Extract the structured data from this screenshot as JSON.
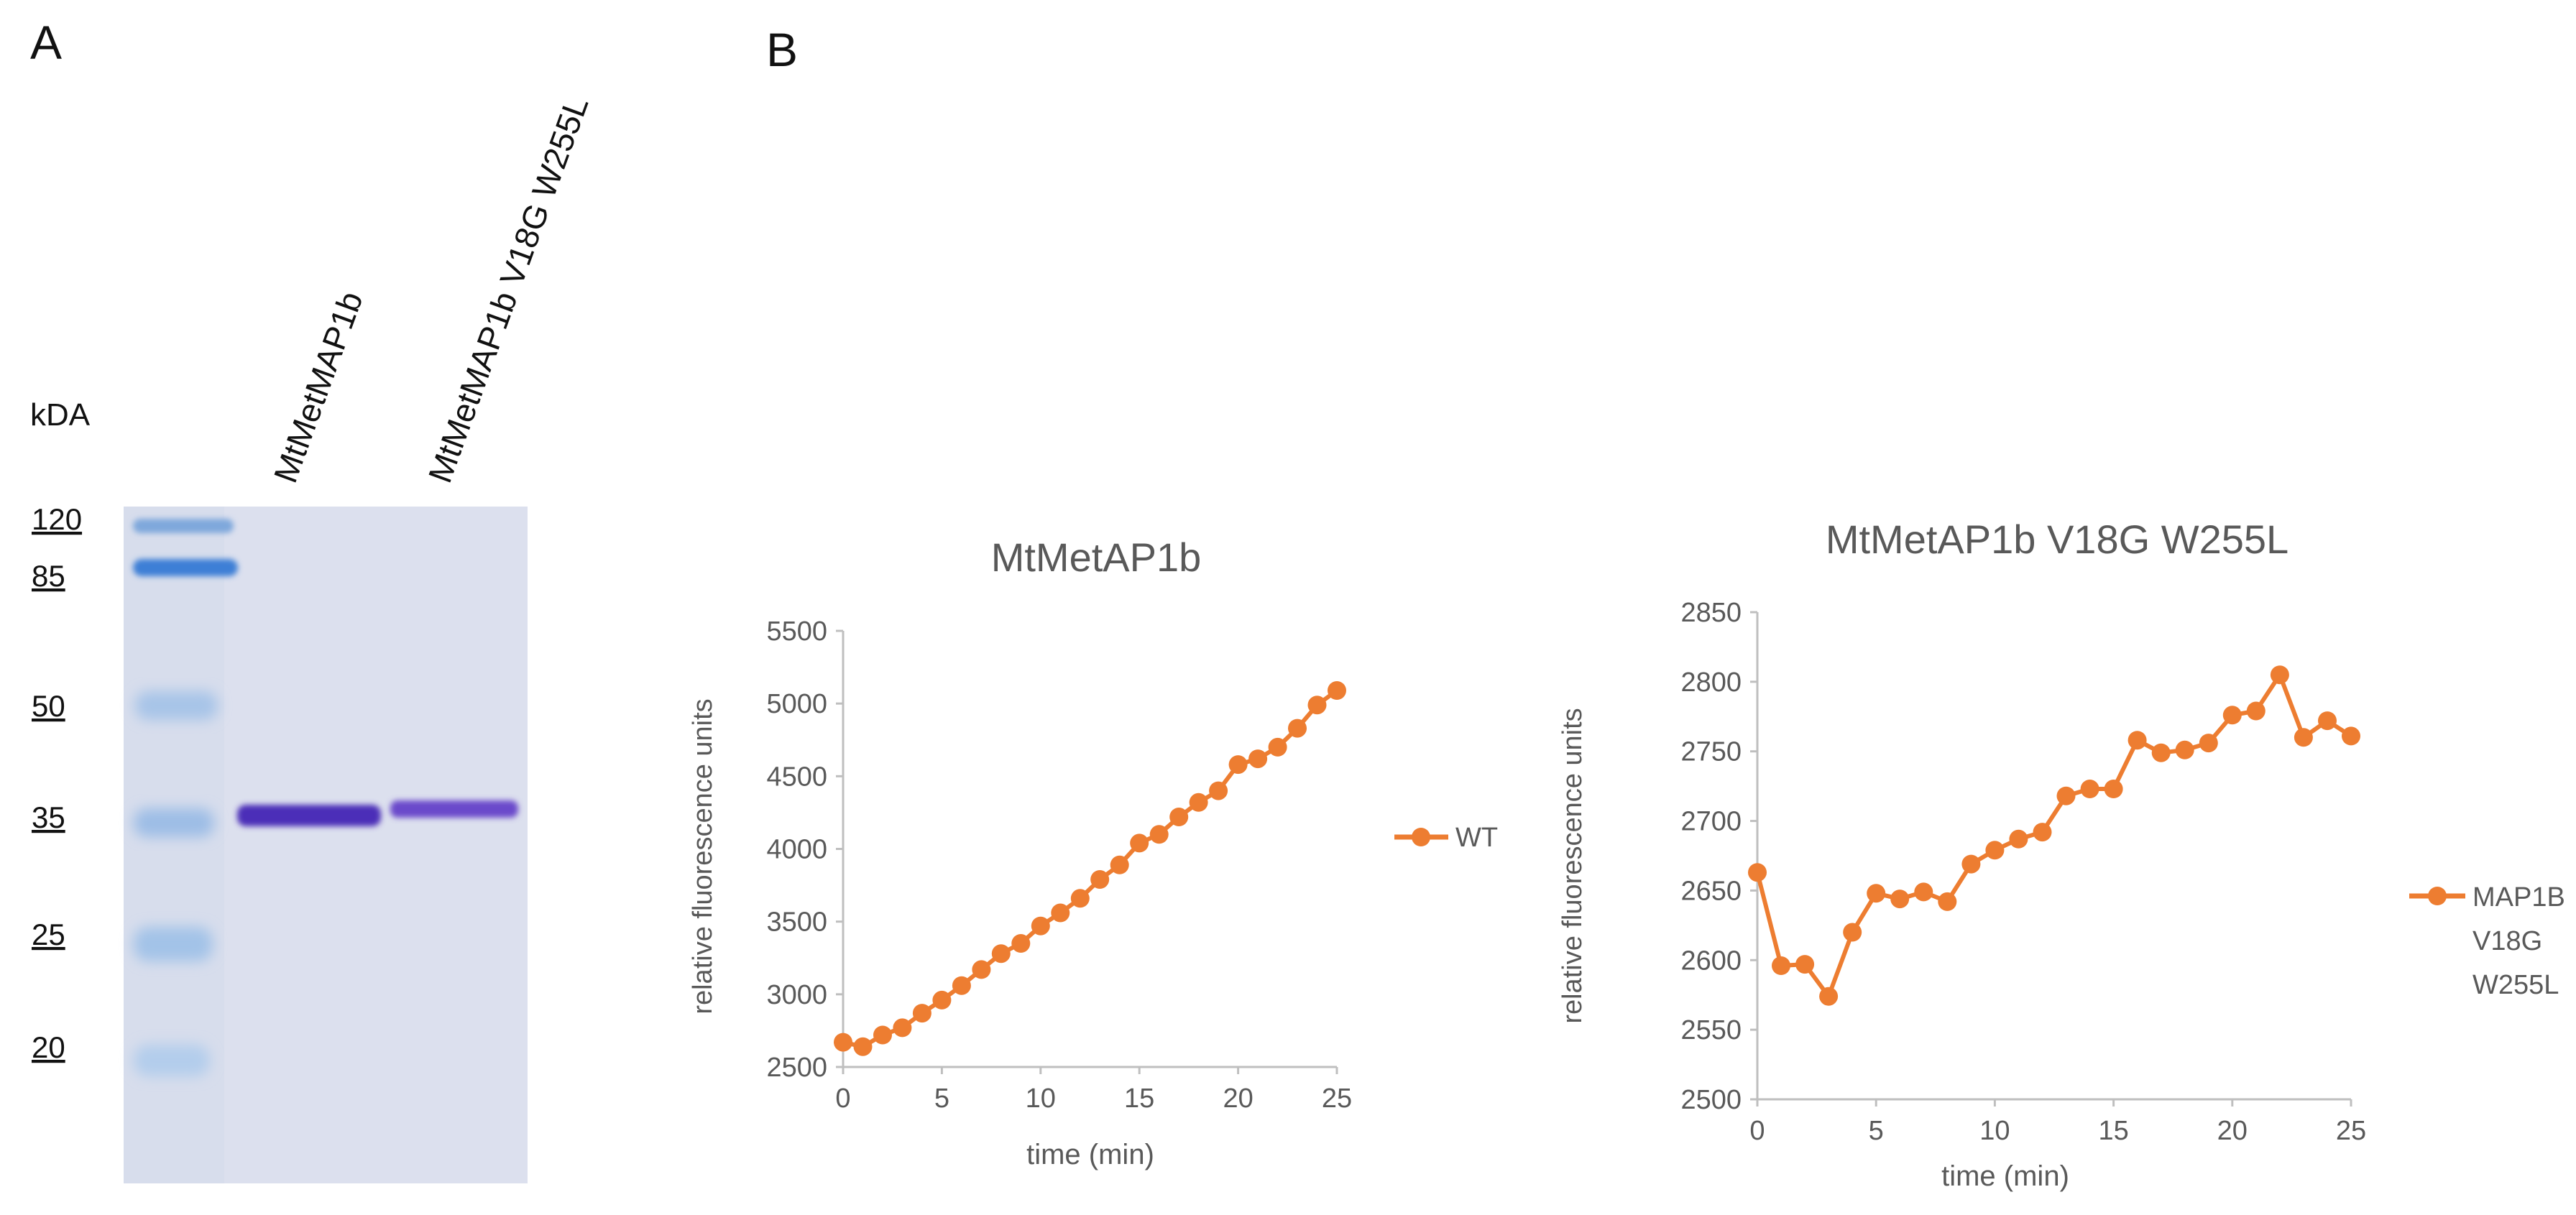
{
  "panel_a": {
    "letter": "A",
    "kda_label": "kDA",
    "lane_labels": [
      "MtMetMAP1b",
      "MtMetMAP1b V18G W255L"
    ],
    "marker_labels": [
      "120",
      "85",
      "50",
      "35",
      "25",
      "20"
    ]
  },
  "panel_b": {
    "letter": "B"
  },
  "colors": {
    "series": "#ED7D31",
    "axis": "#BFBFBF",
    "text": "#595959",
    "gel_bg": "#DCE0EE",
    "marker_band": "#7FA8DC",
    "protein_band": "#4B2FB8"
  },
  "chart_data": [
    {
      "type": "line",
      "title": "MtMetAP1b",
      "xlabel": "time  (min)",
      "ylabel": "relative fluorescence units",
      "xlim": [
        0,
        25
      ],
      "ylim": [
        2500,
        5500
      ],
      "x_ticks": [
        0,
        5,
        10,
        15,
        20,
        25
      ],
      "y_ticks": [
        2500,
        3000,
        3500,
        4000,
        4500,
        5000,
        5500
      ],
      "legend": "right",
      "grid": false,
      "series": [
        {
          "name": "WT",
          "x": [
            0,
            1,
            2,
            3,
            4,
            5,
            6,
            7,
            8,
            9,
            10,
            11,
            12,
            13,
            14,
            15,
            16,
            17,
            18,
            19,
            20,
            21,
            22,
            23,
            24,
            25
          ],
          "values": [
            2670,
            2640,
            2720,
            2770,
            2870,
            2960,
            3060,
            3170,
            3280,
            3350,
            3470,
            3560,
            3660,
            3790,
            3890,
            4040,
            4100,
            4220,
            4320,
            4400,
            4580,
            4620,
            4700,
            4830,
            4990,
            5090
          ]
        }
      ]
    },
    {
      "type": "line",
      "title": "MtMetAP1b V18G W255L",
      "xlabel": "time (min)",
      "ylabel": "relative fluorescence units",
      "xlim": [
        0,
        25
      ],
      "ylim": [
        2500,
        2850
      ],
      "x_ticks": [
        0,
        5,
        10,
        15,
        20,
        25
      ],
      "y_ticks": [
        2500,
        2550,
        2600,
        2650,
        2700,
        2750,
        2800,
        2850
      ],
      "legend": "right",
      "grid": false,
      "series": [
        {
          "name": "MAP1B V18G W255L",
          "legend_lines": [
            "MAP1B",
            "V18G",
            "W255L"
          ],
          "x": [
            0,
            1,
            2,
            3,
            4,
            5,
            6,
            7,
            8,
            9,
            10,
            11,
            12,
            13,
            14,
            15,
            16,
            17,
            18,
            19,
            20,
            21,
            22,
            23,
            24,
            25
          ],
          "values": [
            2663,
            2596,
            2597,
            2574,
            2620,
            2648,
            2644,
            2649,
            2642,
            2669,
            2679,
            2687,
            2692,
            2718,
            2723,
            2723,
            2758,
            2749,
            2751,
            2756,
            2776,
            2779,
            2805,
            2760,
            2772,
            2761
          ]
        }
      ]
    }
  ]
}
